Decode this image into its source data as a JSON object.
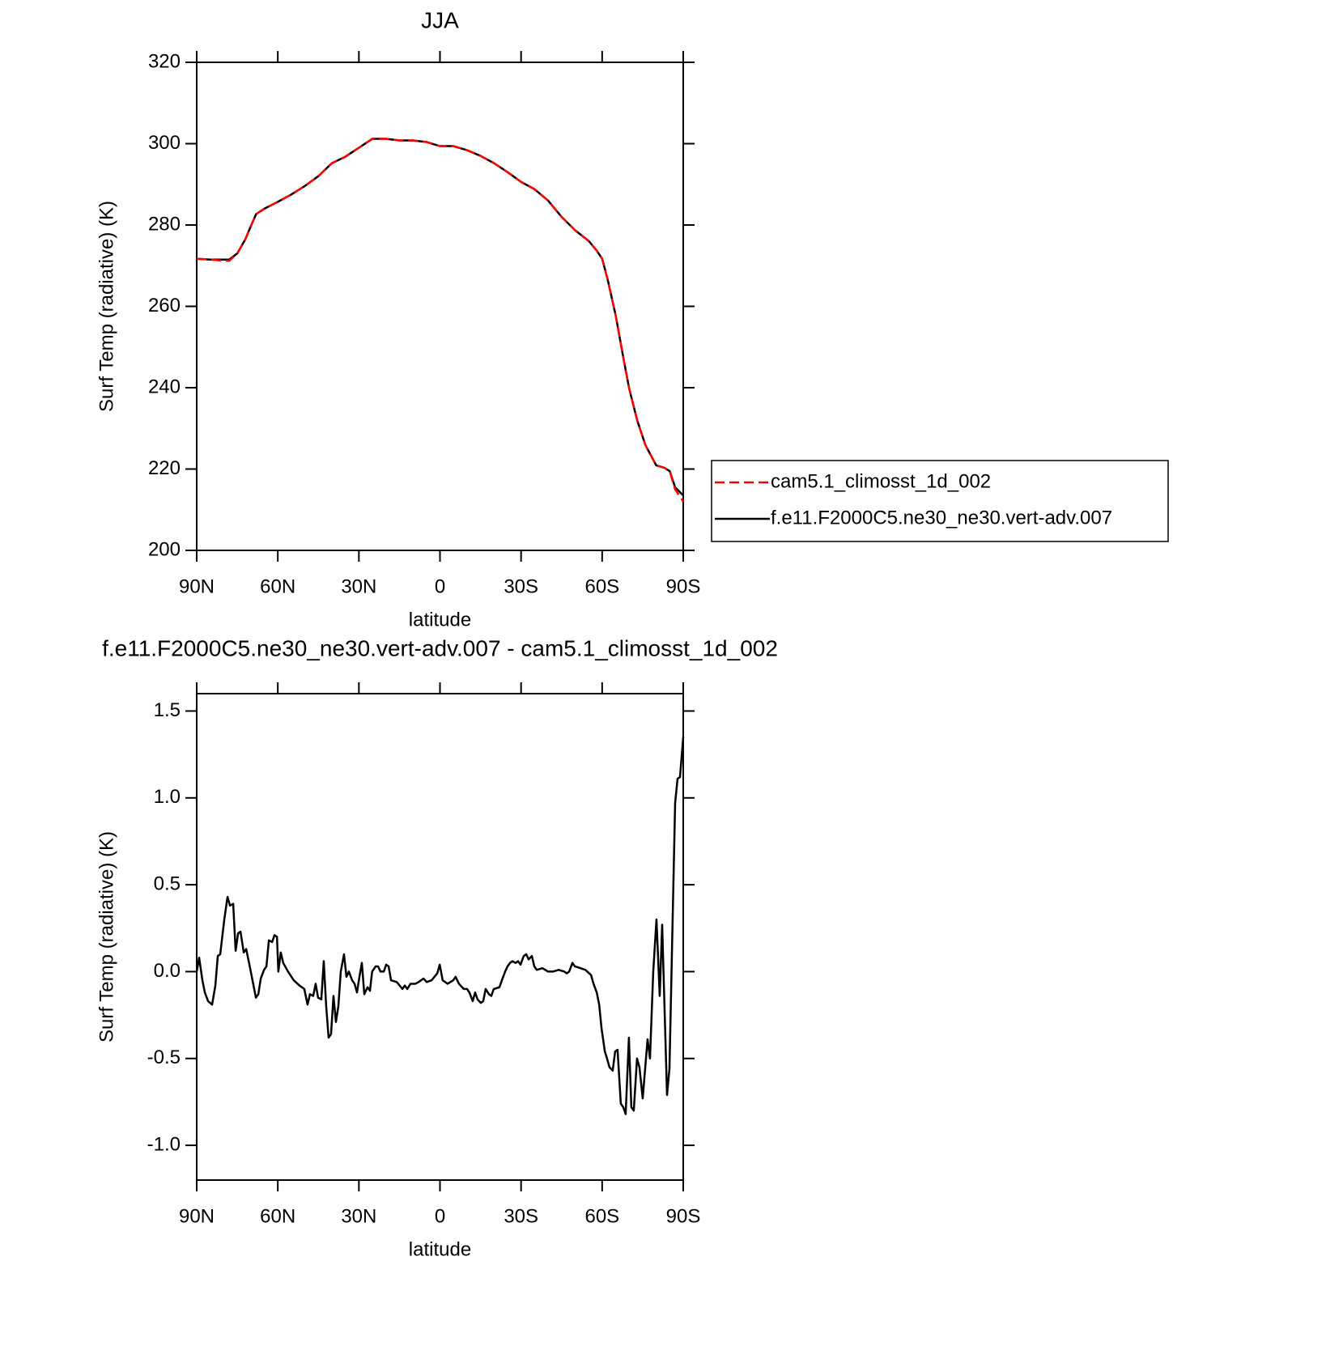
{
  "chart_data": [
    {
      "type": "line",
      "title": "JJA",
      "xlabel": "latitude",
      "ylabel": "Surf Temp (radiative) (K)",
      "xlim": [
        90,
        -90
      ],
      "xticks": [
        {
          "value": 90,
          "label": "90N"
        },
        {
          "value": 60,
          "label": "60N"
        },
        {
          "value": 30,
          "label": "30N"
        },
        0,
        {
          "value": -30,
          "label": "30S"
        },
        {
          "value": -60,
          "label": "60S"
        },
        {
          "value": -90,
          "label": "90S"
        }
      ],
      "ylim": [
        200,
        320
      ],
      "yticks": [
        200,
        220,
        240,
        260,
        280,
        300,
        320
      ],
      "legend": "right",
      "x": [
        90,
        85,
        80,
        78,
        75,
        72,
        70,
        68,
        65,
        60,
        55,
        50,
        45,
        40,
        35,
        30,
        25,
        20,
        15,
        10,
        5,
        0,
        -5,
        -10,
        -15,
        -20,
        -25,
        -30,
        -35,
        -40,
        -45,
        -50,
        -55,
        -58,
        -60,
        -62,
        -65,
        -68,
        -70,
        -73,
        -76,
        -80,
        -83,
        -85,
        -87,
        -90
      ],
      "series": [
        {
          "name": "cam5.1_climosst_1d_002",
          "color": "#ff0000",
          "linestyle": "dashed",
          "values": [
            271.7,
            271.5,
            271.2,
            271.2,
            273,
            276.5,
            279.7,
            282.7,
            284,
            285.7,
            287.5,
            289.6,
            292,
            295.2,
            296.8,
            299,
            301.2,
            301.2,
            300.8,
            300.8,
            300.4,
            299.4,
            299.4,
            298.4,
            297,
            295.2,
            293,
            290.6,
            288.8,
            286,
            282,
            278.7,
            276.1,
            273.7,
            271.7,
            266.7,
            257.8,
            246.8,
            239.8,
            231.9,
            225.9,
            220.9,
            220.3,
            219.5,
            215,
            212
          ]
        },
        {
          "name": "f.e11.F2000C5.ne30_ne30.vert-adv.007",
          "color": "#000000",
          "linestyle": "solid",
          "values": [
            271.7,
            271.5,
            271.5,
            271.5,
            273,
            276.5,
            279.7,
            282.7,
            284,
            285.7,
            287.5,
            289.6,
            292,
            295.2,
            296.8,
            299,
            301.2,
            301.2,
            300.8,
            300.8,
            300.4,
            299.4,
            299.4,
            298.4,
            297,
            295.2,
            293,
            290.6,
            288.8,
            286,
            282,
            278.7,
            276.1,
            273.7,
            271.7,
            266.7,
            257.8,
            246.8,
            239.8,
            231.9,
            225.9,
            220.9,
            220.3,
            219.5,
            215.5,
            213.5
          ]
        }
      ]
    },
    {
      "type": "line",
      "title": "f.e11.F2000C5.ne30_ne30.vert-adv.007 - cam5.1_climosst_1d_002",
      "xlabel": "latitude",
      "ylabel": "Surf Temp (radiative) (K)",
      "xlim": [
        90,
        -90
      ],
      "xticks": [
        {
          "value": 90,
          "label": "90N"
        },
        {
          "value": 60,
          "label": "60N"
        },
        {
          "value": 30,
          "label": "30N"
        },
        0,
        {
          "value": -30,
          "label": "30S"
        },
        {
          "value": -60,
          "label": "60S"
        },
        {
          "value": -90,
          "label": "90S"
        }
      ],
      "ylim": [
        -1.2,
        1.6
      ],
      "yticks": [
        {
          "value": -1,
          "label": "-1.0"
        },
        -0.5,
        {
          "value": 0,
          "label": "0.0"
        },
        0.5,
        {
          "value": 1,
          "label": "1.0"
        },
        1.5
      ],
      "x": [
        90,
        89.1,
        87.9,
        87.0,
        85.8,
        84.3,
        83.1,
        82.2,
        81.3,
        79.8,
        78.6,
        77.7,
        76.5,
        75.6,
        74.7,
        73.8,
        72.6,
        71.7,
        70.5,
        68.1,
        67.2,
        66.3,
        65.1,
        64.2,
        63.3,
        62.1,
        61.2,
        60.3,
        59.8,
        58.9,
        58.0,
        56.2,
        54.1,
        52.0,
        50.2,
        49.0,
        48.1,
        46.9,
        46.0,
        45.1,
        43.9,
        43.0,
        42.1,
        41.2,
        40.3,
        39.4,
        38.5,
        37.6,
        36.7,
        35.5,
        34.6,
        33.7,
        32.5,
        31.6,
        30.7,
        29.8,
        28.9,
        28.0,
        26.8,
        25.9,
        25.1,
        23.8,
        22.9,
        22.0,
        20.8,
        19.9,
        19.0,
        18.1,
        16.0,
        13.9,
        13.0,
        12.1,
        10.9,
        9.1,
        7.9,
        6.1,
        4.9,
        3.1,
        1.0,
        0.1,
        -1.0,
        -2.8,
        -4.9,
        -5.8,
        -7.0,
        -8.8,
        -10.0,
        -10.9,
        -12.1,
        -13.0,
        -13.9,
        -15.1,
        -16.0,
        -16.9,
        -18.1,
        -19.0,
        -19.9,
        -22.0,
        -22.9,
        -24.1,
        -25.0,
        -25.9,
        -26.8,
        -28.0,
        -28.9,
        -29.8,
        -31.0,
        -31.9,
        -32.8,
        -34.0,
        -34.9,
        -35.8,
        -37.9,
        -40.0,
        -41.8,
        -43.9,
        -46.0,
        -46.9,
        -47.8,
        -49.0,
        -49.9,
        -52.0,
        -53.8,
        -55.9,
        -56.8,
        -58.0,
        -58.9,
        -59.8,
        -61.0,
        -61.8,
        -62.7,
        -63.9,
        -64.8,
        -65.7,
        -66.9,
        -67.8,
        -68.7,
        -69.9,
        -70.8,
        -71.7,
        -72.9,
        -73.8,
        -75.0,
        -75.9,
        -76.8,
        -77.7,
        -78.9,
        -80.1,
        -81.3,
        -82.2,
        -84.0,
        -84.9,
        -87.0,
        -87.9,
        -88.8,
        -90.0
      ],
      "series": [
        {
          "color": "#000000",
          "linestyle": "solid",
          "values": [
            0.0,
            0.08,
            -0.05,
            -0.12,
            -0.17,
            -0.19,
            -0.08,
            0.09,
            0.1,
            0.3,
            0.43,
            0.38,
            0.39,
            0.12,
            0.22,
            0.23,
            0.11,
            0.13,
            0.04,
            -0.15,
            -0.13,
            -0.04,
            0.01,
            0.03,
            0.18,
            0.17,
            0.21,
            0.2,
            0.0,
            0.11,
            0.05,
            0.0,
            -0.05,
            -0.08,
            -0.1,
            -0.19,
            -0.13,
            -0.14,
            -0.07,
            -0.15,
            -0.16,
            0.06,
            -0.2,
            -0.38,
            -0.36,
            -0.14,
            -0.29,
            -0.2,
            0.0,
            0.1,
            -0.03,
            0.0,
            -0.05,
            -0.07,
            -0.12,
            -0.03,
            0.05,
            -0.13,
            -0.09,
            -0.11,
            0.0,
            0.03,
            0.03,
            0.0,
            0.0,
            0.04,
            0.03,
            -0.05,
            -0.06,
            -0.1,
            -0.08,
            -0.1,
            -0.07,
            -0.07,
            -0.06,
            -0.04,
            -0.06,
            -0.05,
            -0.01,
            0.04,
            -0.05,
            -0.07,
            -0.05,
            -0.03,
            -0.07,
            -0.1,
            -0.1,
            -0.12,
            -0.17,
            -0.12,
            -0.16,
            -0.18,
            -0.17,
            -0.1,
            -0.13,
            -0.14,
            -0.1,
            -0.09,
            -0.05,
            0.0,
            0.03,
            0.05,
            0.06,
            0.05,
            0.06,
            0.04,
            0.09,
            0.1,
            0.07,
            0.09,
            0.03,
            0.01,
            0.02,
            0.0,
            0.0,
            0.01,
            0.0,
            -0.01,
            0.0,
            0.05,
            0.03,
            0.02,
            0.01,
            -0.02,
            -0.07,
            -0.12,
            -0.19,
            -0.33,
            -0.46,
            -0.5,
            -0.55,
            -0.57,
            -0.46,
            -0.45,
            -0.76,
            -0.78,
            -0.82,
            -0.38,
            -0.78,
            -0.8,
            -0.5,
            -0.55,
            -0.73,
            -0.56,
            -0.39,
            -0.5,
            0.0,
            0.3,
            -0.14,
            0.27,
            -0.71,
            -0.56,
            0.97,
            1.11,
            1.12,
            1.35
          ]
        }
      ]
    }
  ]
}
